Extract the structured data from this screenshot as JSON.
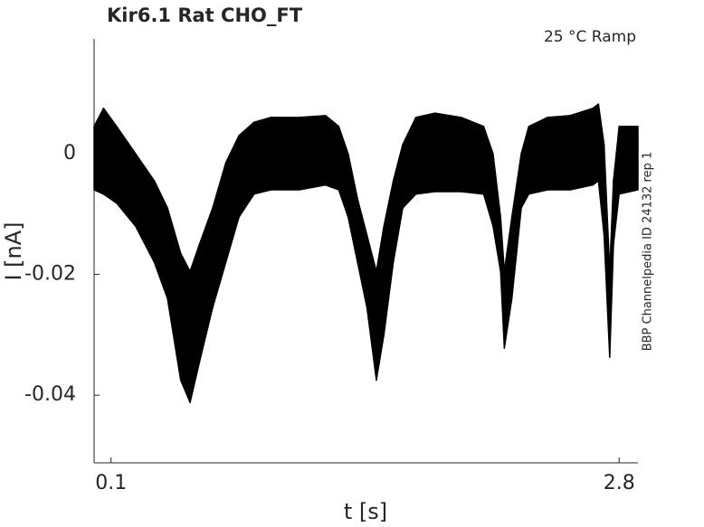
{
  "chart_data": {
    "type": "band",
    "title": "Kir6.1  Rat  CHO_FT",
    "subtitle": "25 °C  Ramp",
    "side_note": "BBP Channelpedia ID 24132 rep 1",
    "xlabel": "t [s]",
    "ylabel": "I [nA]",
    "color": "#000000",
    "xlim": [
      0.01,
      2.9
    ],
    "ylim": [
      -0.0512,
      0.019
    ],
    "xticks": [
      0.1,
      2.8
    ],
    "yticks": [
      0,
      -0.02,
      -0.04
    ],
    "x": [
      0.01,
      0.06,
      0.13,
      0.23,
      0.33,
      0.4,
      0.47,
      0.52,
      0.57,
      0.64,
      0.71,
      0.78,
      0.86,
      0.95,
      1.1,
      1.24,
      1.31,
      1.36,
      1.41,
      1.46,
      1.51,
      1.55,
      1.6,
      1.65,
      1.72,
      1.82,
      1.96,
      2.08,
      2.13,
      2.17,
      2.19,
      2.23,
      2.28,
      2.32,
      2.42,
      2.54,
      2.66,
      2.69,
      2.72,
      2.75,
      2.77,
      2.8,
      2.9
    ],
    "upper": [
      0.0045,
      0.0075,
      0.0045,
      0,
      -0.0045,
      -0.009,
      -0.0165,
      -0.0195,
      -0.015,
      -0.009,
      -0.0015,
      0.003,
      0.0052,
      0.006,
      0.006,
      0.0063,
      0.0045,
      0,
      -0.0075,
      -0.0135,
      -0.0195,
      -0.012,
      -0.0045,
      0.0015,
      0.006,
      0.0067,
      0.006,
      0.0045,
      0,
      -0.0105,
      -0.0195,
      -0.0105,
      0,
      0.0045,
      0.006,
      0.0063,
      0.0075,
      0.0082,
      0.0015,
      -0.0195,
      -0.0045,
      0.0045,
      0.0045
    ],
    "lower": [
      -0.006,
      -0.0067,
      -0.0082,
      -0.012,
      -0.018,
      -0.024,
      -0.0375,
      -0.0412,
      -0.0345,
      -0.0255,
      -0.018,
      -0.0105,
      -0.0067,
      -0.006,
      -0.006,
      -0.0052,
      -0.006,
      -0.0105,
      -0.018,
      -0.0255,
      -0.0375,
      -0.03,
      -0.018,
      -0.009,
      -0.0067,
      -0.0063,
      -0.0063,
      -0.0067,
      -0.012,
      -0.0195,
      -0.0322,
      -0.024,
      -0.009,
      -0.0067,
      -0.006,
      -0.006,
      -0.0052,
      -0.0045,
      -0.0135,
      -0.0337,
      -0.015,
      -0.0067,
      -0.006
    ]
  }
}
